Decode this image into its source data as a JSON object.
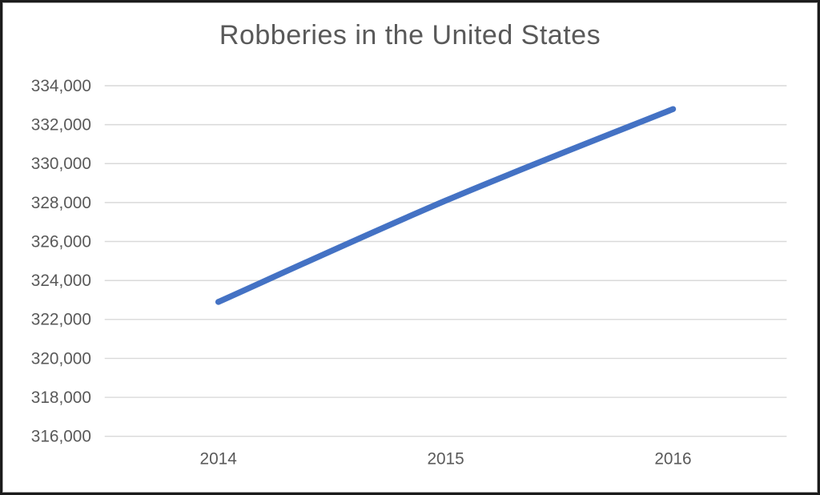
{
  "page": {
    "background": "#ffffff",
    "frame_border_color": "#1c1c1c"
  },
  "chart_data": {
    "type": "line",
    "title": "Robberies in the United States",
    "categories": [
      "2014",
      "2015",
      "2016"
    ],
    "series": [
      {
        "values": [
          322900,
          328100,
          332800
        ],
        "color": "#4472C4",
        "smooth": true,
        "stroke_width": 7.5
      }
    ],
    "xlabel": "",
    "ylabel": "",
    "ylim": [
      316000,
      334000
    ],
    "ytick_step": 2000,
    "ytick_labels_ascending": [
      "316,000",
      "318,000",
      "320,000",
      "322,000",
      "324,000",
      "326,000",
      "328,000",
      "330,000",
      "332,000",
      "334,000"
    ],
    "grid": true,
    "legend": "none",
    "colors": {
      "title_text": "#595959",
      "tick_label_text": "#595959",
      "gridline": "#D9D9D9"
    }
  }
}
